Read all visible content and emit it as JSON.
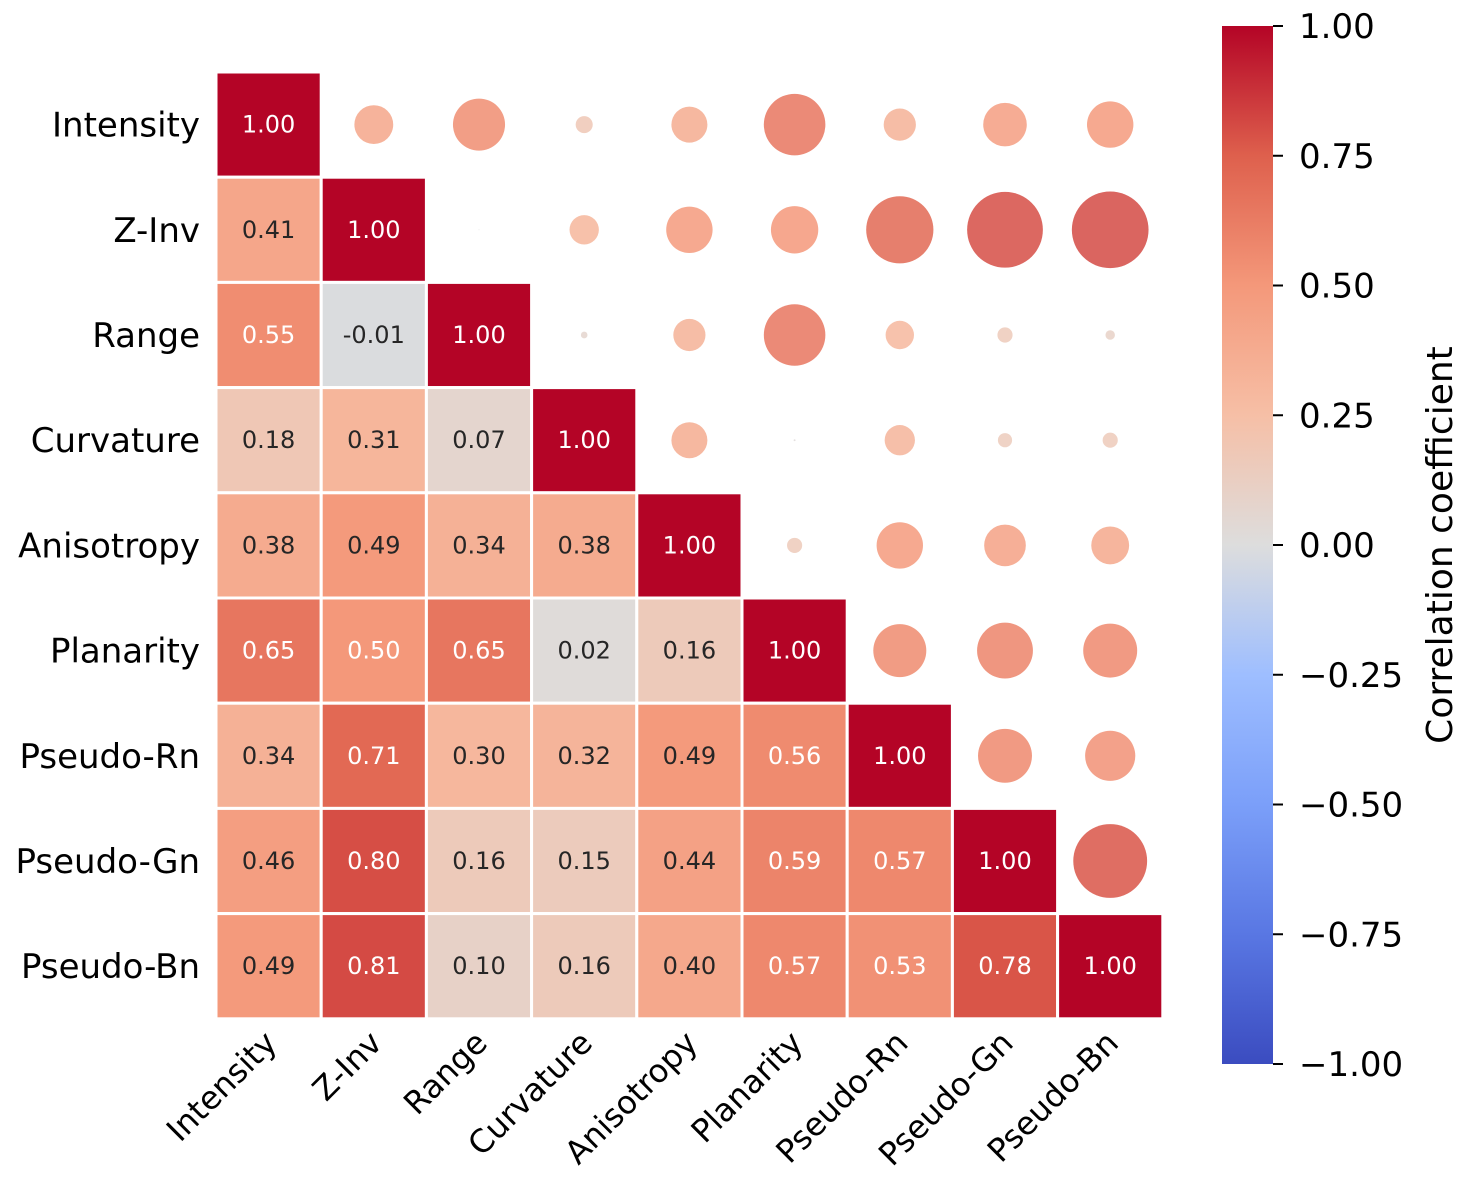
{
  "chart_data": {
    "type": "heatmap",
    "variables": [
      "Intensity",
      "Z-Inv",
      "Range",
      "Curvature",
      "Anisotropy",
      "Planarity",
      "Pseudo-Rn",
      "Pseudo-Gn",
      "Pseudo-Bn"
    ],
    "matrix": [
      [
        1.0,
        0.41,
        0.55,
        0.18,
        0.38,
        0.65,
        0.34,
        0.46,
        0.49
      ],
      [
        0.41,
        1.0,
        -0.01,
        0.31,
        0.49,
        0.5,
        0.71,
        0.8,
        0.81
      ],
      [
        0.55,
        -0.01,
        1.0,
        0.07,
        0.34,
        0.65,
        0.3,
        0.16,
        0.1
      ],
      [
        0.18,
        0.31,
        0.07,
        1.0,
        0.38,
        0.02,
        0.32,
        0.15,
        0.16
      ],
      [
        0.38,
        0.49,
        0.34,
        0.38,
        1.0,
        0.16,
        0.49,
        0.44,
        0.4
      ],
      [
        0.65,
        0.5,
        0.65,
        0.02,
        0.16,
        1.0,
        0.56,
        0.59,
        0.57
      ],
      [
        0.34,
        0.71,
        0.3,
        0.32,
        0.49,
        0.56,
        1.0,
        0.57,
        0.53
      ],
      [
        0.46,
        0.8,
        0.16,
        0.15,
        0.44,
        0.59,
        0.57,
        1.0,
        0.78
      ],
      [
        0.49,
        0.81,
        0.1,
        0.16,
        0.4,
        0.57,
        0.53,
        0.78,
        1.0
      ]
    ],
    "lower_triangle": "annotated squares",
    "upper_triangle": "circles sized by |r|",
    "colormap": "coolwarm",
    "value_range": [
      -1.0,
      1.0
    ],
    "colorbar": {
      "label": "Correlation coefficient",
      "ticks": [
        "1.00",
        "0.75",
        "0.50",
        "0.25",
        "0.00",
        "−0.25",
        "−0.50",
        "−0.75",
        "−1.00"
      ],
      "tick_values": [
        1.0,
        0.75,
        0.5,
        0.25,
        0.0,
        -0.25,
        -0.5,
        -0.75,
        -1.0
      ]
    },
    "title": "",
    "xlabel": "",
    "ylabel": ""
  },
  "colors": {
    "cmap_stops": [
      [
        0.0,
        "#3b4cc0"
      ],
      [
        0.125,
        "#5977e3"
      ],
      [
        0.25,
        "#7b9ff9"
      ],
      [
        0.375,
        "#9ebeff"
      ],
      [
        0.5,
        "#dddddd"
      ],
      [
        0.625,
        "#f6bfa6"
      ],
      [
        0.75,
        "#f4987a"
      ],
      [
        0.875,
        "#de604d"
      ],
      [
        1.0,
        "#b40426"
      ]
    ],
    "light_text": "#ffffff",
    "dark_text": "#262626",
    "grid_line": "#ffffff"
  }
}
